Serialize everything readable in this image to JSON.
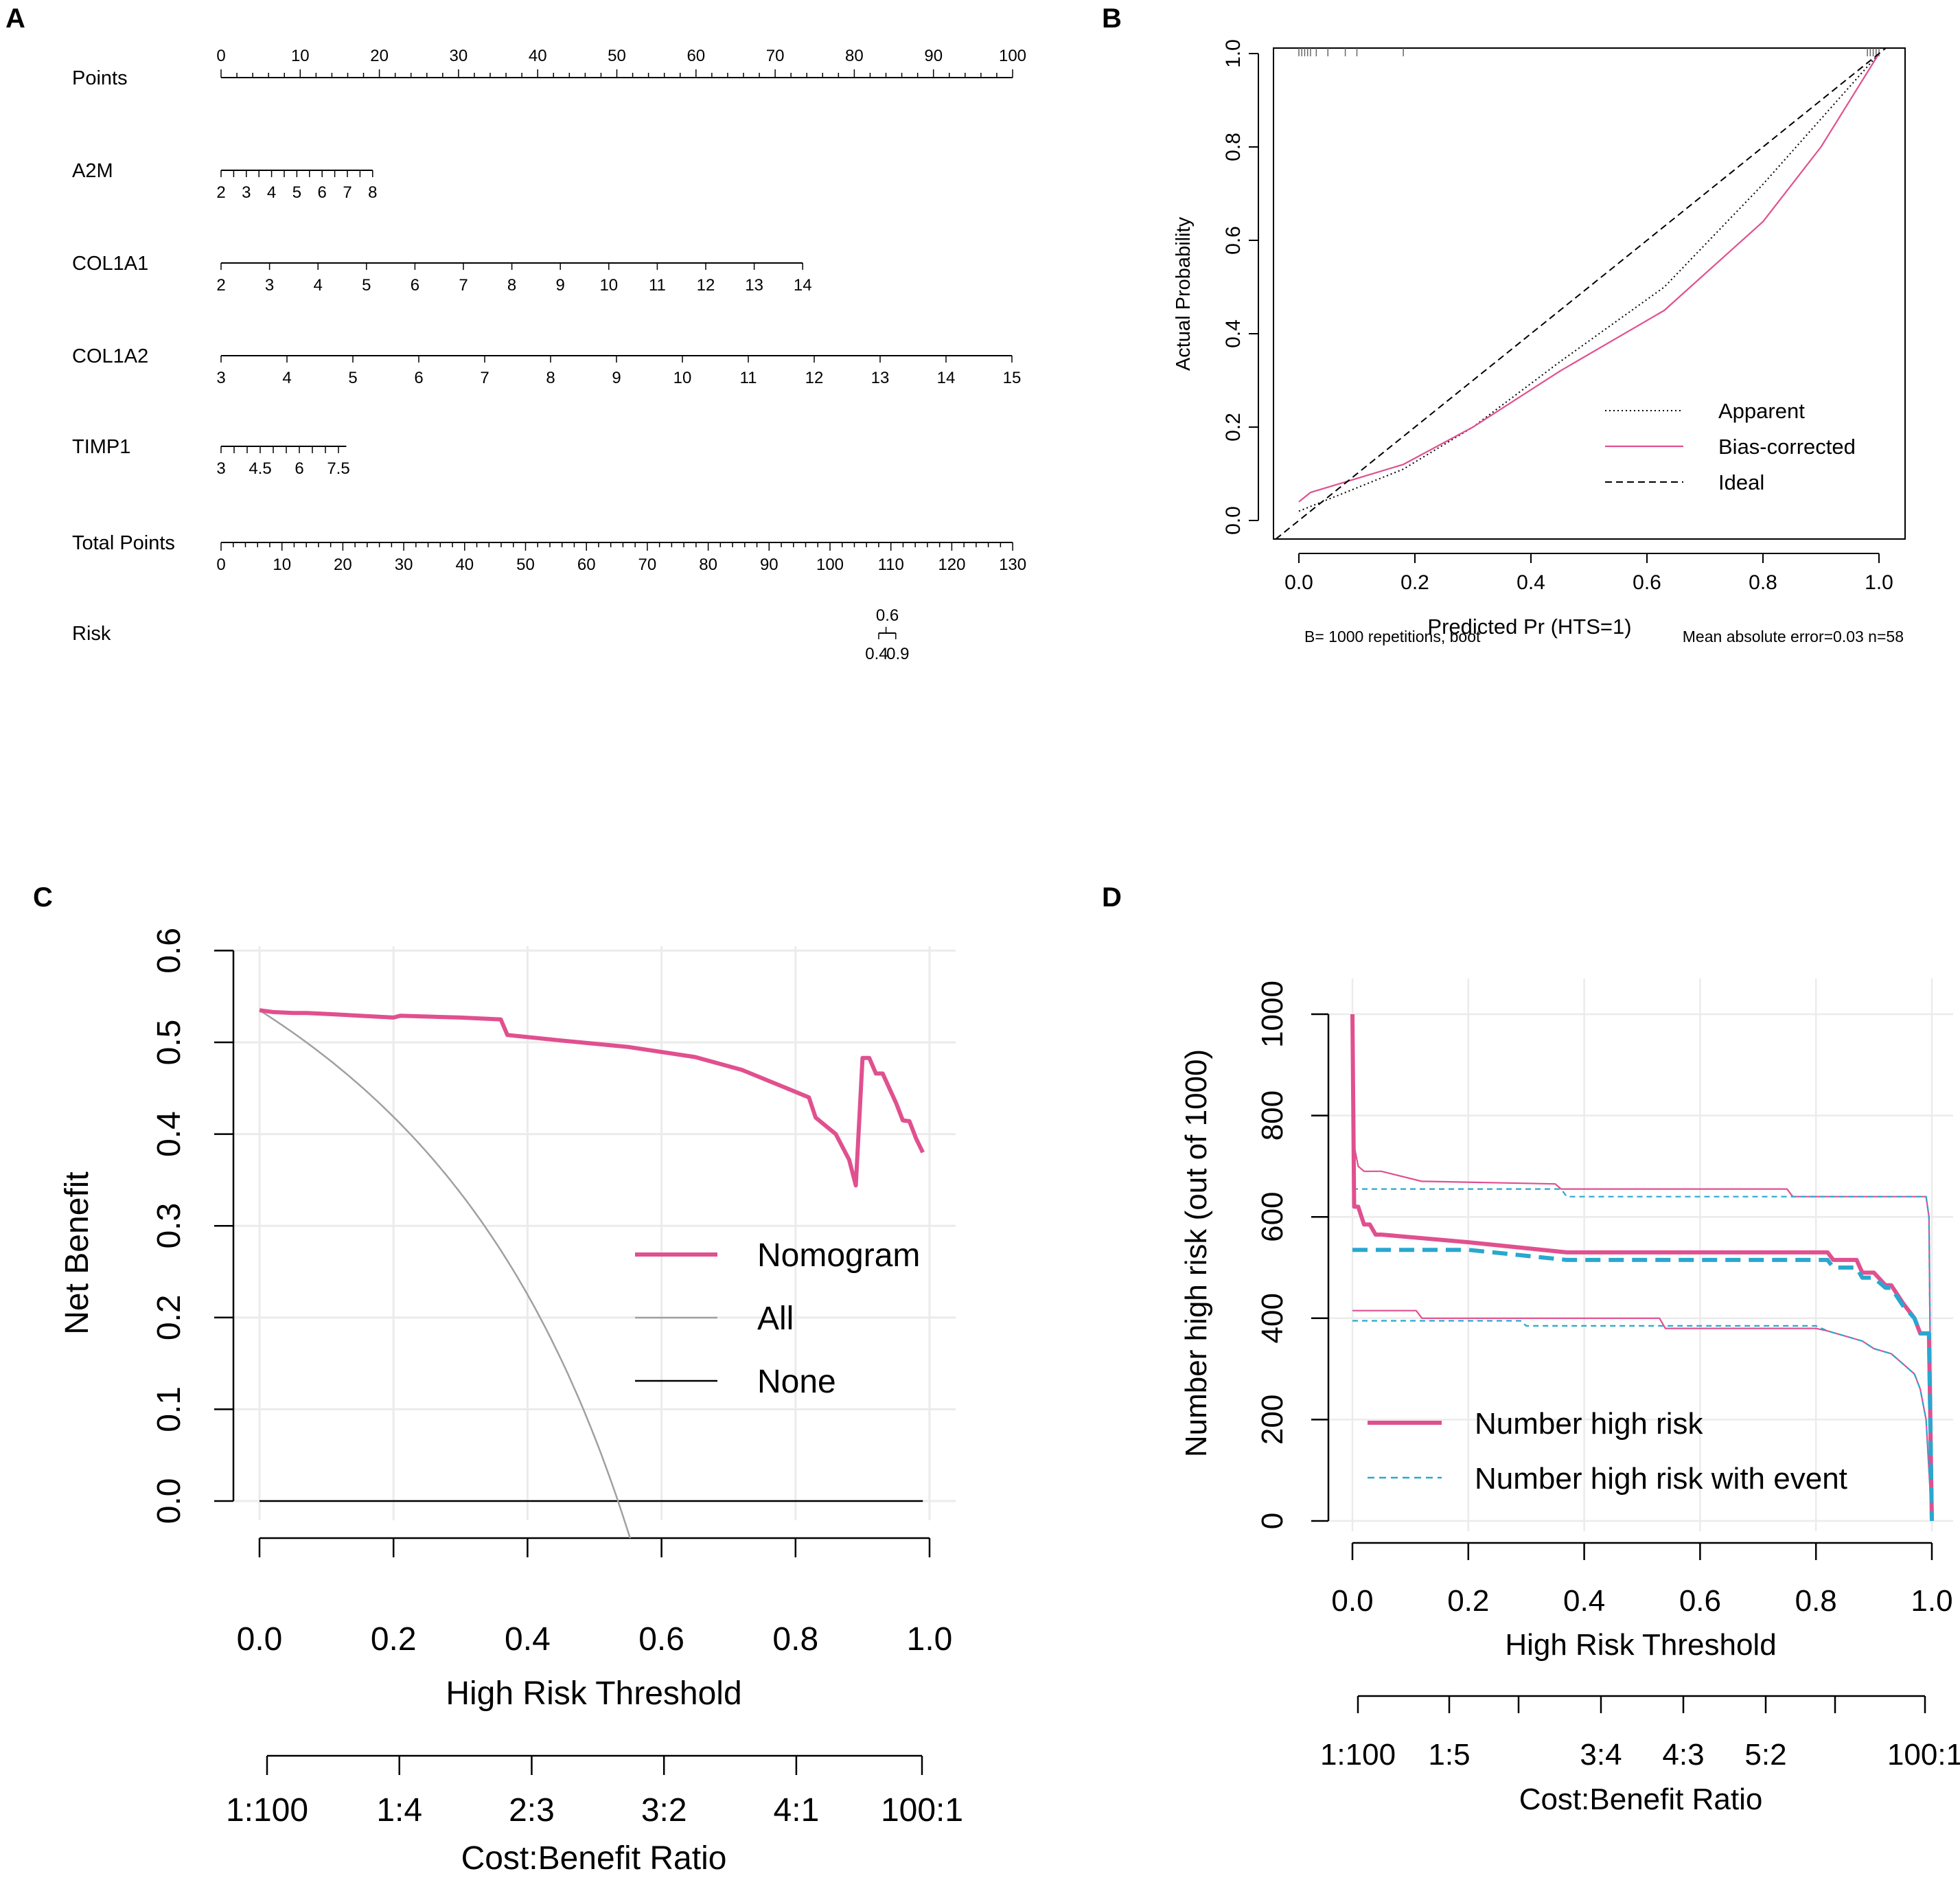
{
  "panels": {
    "a": "A",
    "b": "B",
    "c": "C",
    "d": "D"
  },
  "colors": {
    "pink": "#e0508f",
    "gray": "#a0a0a0",
    "cyan": "#2aa7cf",
    "grid": "#ebebeb",
    "black": "#000000"
  },
  "chart_data": [
    {
      "type": "table",
      "id": "nomogram",
      "rows": [
        {
          "label": "Points",
          "ticks": [
            "0",
            "10",
            "20",
            "30",
            "40",
            "50",
            "60",
            "70",
            "80",
            "90",
            "100"
          ],
          "labels_above": true
        },
        {
          "label": "A2M",
          "ticks": [
            "2",
            "3",
            "4",
            "5",
            "6",
            "7",
            "8"
          ]
        },
        {
          "label": "COL1A1",
          "ticks": [
            "2",
            "3",
            "4",
            "5",
            "6",
            "7",
            "8",
            "9",
            "10",
            "11",
            "12",
            "13",
            "14"
          ]
        },
        {
          "label": "COL1A2",
          "ticks": [
            "3",
            "4",
            "5",
            "6",
            "7",
            "8",
            "9",
            "10",
            "11",
            "12",
            "13",
            "14",
            "15"
          ]
        },
        {
          "label": "TIMP1",
          "ticks": [
            "3",
            "4.5",
            "6",
            "7.5"
          ]
        },
        {
          "label": "Total Points",
          "ticks": [
            "0",
            "10",
            "20",
            "30",
            "40",
            "50",
            "60",
            "70",
            "80",
            "90",
            "100",
            "110",
            "120",
            "130"
          ]
        },
        {
          "label": "Risk",
          "ticks_above": [
            "0.6"
          ],
          "ticks_below": [
            "0.4",
            "0.9"
          ]
        }
      ]
    },
    {
      "type": "line",
      "id": "calibration",
      "xlabel": "Predicted Pr (HTS=1)",
      "ylabel": "Actual Probability",
      "xlim": [
        0,
        1
      ],
      "ylim": [
        0,
        1
      ],
      "xticks": [
        "0.0",
        "0.2",
        "0.4",
        "0.6",
        "0.8",
        "1.0"
      ],
      "yticks": [
        "0.0",
        "0.2",
        "0.4",
        "0.6",
        "0.8",
        "1.0"
      ],
      "legend_position": "bottom-right",
      "series": [
        {
          "name": "Apparent",
          "style": "dotted",
          "x": [
            0.0,
            0.1,
            0.18,
            0.3,
            0.45,
            0.63,
            0.8,
            0.9,
            1.0
          ],
          "y": [
            0.02,
            0.07,
            0.11,
            0.2,
            0.34,
            0.5,
            0.72,
            0.86,
            1.0
          ]
        },
        {
          "name": "Bias-corrected",
          "style": "solid",
          "x": [
            0.0,
            0.02,
            0.1,
            0.18,
            0.3,
            0.45,
            0.63,
            0.8,
            0.9,
            1.0
          ],
          "y": [
            0.04,
            0.06,
            0.09,
            0.12,
            0.2,
            0.32,
            0.45,
            0.64,
            0.8,
            1.0
          ]
        },
        {
          "name": "Ideal",
          "style": "dashed",
          "x": [
            -0.04,
            1.04
          ],
          "y": [
            -0.04,
            1.04
          ]
        }
      ],
      "rug_x": [
        0.0,
        0.005,
        0.01,
        0.015,
        0.02,
        0.03,
        0.05,
        0.08,
        0.1,
        0.18,
        0.99,
        0.995,
        1.0,
        0.985,
        0.98
      ],
      "footnote_left": "B= 1000 repetitions, boot",
      "footnote_right": "Mean absolute error=0.03 n=58"
    },
    {
      "type": "line",
      "id": "decision_curve",
      "xlabel": "High Risk Threshold",
      "ylabel": "Net Benefit",
      "xlim": [
        0,
        1
      ],
      "ylim": [
        0,
        0.6
      ],
      "xticks": [
        "0.0",
        "0.2",
        "0.4",
        "0.6",
        "0.8",
        "1.0"
      ],
      "yticks": [
        "0.0",
        "0.1",
        "0.2",
        "0.3",
        "0.4",
        "0.5",
        "0.6"
      ],
      "cost_benefit_label": "Cost:Benefit Ratio",
      "cost_benefit_ticks": [
        "1:100",
        "1:4",
        "2:3",
        "3:2",
        "4:1",
        "100:1"
      ],
      "legend_position": "center-right",
      "series": [
        {
          "name": "Nomogram",
          "x": [
            0.0,
            0.02,
            0.05,
            0.07,
            0.1,
            0.2,
            0.21,
            0.3,
            0.36,
            0.37,
            0.45,
            0.55,
            0.65,
            0.72,
            0.78,
            0.82,
            0.83,
            0.86,
            0.88,
            0.89,
            0.9,
            0.91,
            0.92,
            0.93,
            0.94,
            0.95,
            0.96,
            0.97,
            0.98,
            0.99
          ],
          "y": [
            0.535,
            0.533,
            0.532,
            0.532,
            0.531,
            0.527,
            0.529,
            0.527,
            0.525,
            0.508,
            0.502,
            0.495,
            0.484,
            0.47,
            0.452,
            0.44,
            0.418,
            0.4,
            0.372,
            0.344,
            0.483,
            0.483,
            0.466,
            0.466,
            0.45,
            0.434,
            0.415,
            0.414,
            0.395,
            0.38
          ]
        },
        {
          "name": "All",
          "prevalence": 0.535,
          "x": [
            0.0,
            0.1,
            0.2,
            0.3,
            0.4,
            0.5,
            0.566
          ],
          "y": [
            0.535,
            0.483,
            0.419,
            0.336,
            0.225,
            0.07,
            -0.07
          ]
        },
        {
          "name": "None",
          "x": [
            0.0,
            0.99
          ],
          "y": [
            0.0,
            0.0
          ]
        }
      ]
    },
    {
      "type": "line",
      "id": "clinical_impact",
      "xlabel": "High Risk Threshold",
      "ylabel": "Number high risk (out of 1000)",
      "xlim": [
        0,
        1
      ],
      "ylim": [
        0,
        1000
      ],
      "xticks": [
        "0.0",
        "0.2",
        "0.4",
        "0.6",
        "0.8",
        "1.0"
      ],
      "yticks": [
        "0",
        "200",
        "400",
        "600",
        "800",
        "1000"
      ],
      "cost_benefit_label": "Cost:Benefit Ratio",
      "cost_benefit_ticks": [
        "1:100",
        "1:5",
        "3:4",
        "4:3",
        "5:2",
        "100:1"
      ],
      "legend_position": "bottom-left",
      "series": [
        {
          "name": "Number high risk",
          "x": [
            0.0,
            0.003,
            0.01,
            0.02,
            0.03,
            0.04,
            0.05,
            0.2,
            0.37,
            0.82,
            0.83,
            0.87,
            0.88,
            0.9,
            0.92,
            0.93,
            0.95,
            0.97,
            0.98,
            0.995,
            1.0
          ],
          "y": [
            1000,
            620,
            620,
            585,
            585,
            565,
            565,
            550,
            530,
            530,
            515,
            515,
            490,
            490,
            465,
            465,
            430,
            400,
            370,
            370,
            0
          ]
        },
        {
          "name": "Number high risk with event",
          "x": [
            0.0,
            0.2,
            0.37,
            0.8,
            0.82,
            0.83,
            0.87,
            0.88,
            0.9,
            0.92,
            0.93,
            0.95,
            0.97,
            0.98,
            0.995,
            1.0
          ],
          "y": [
            535,
            535,
            515,
            515,
            515,
            500,
            500,
            480,
            480,
            460,
            460,
            425,
            400,
            370,
            370,
            0
          ]
        },
        {
          "name": "High risk upper CI",
          "legend": false,
          "x": [
            0.0,
            0.003,
            0.01,
            0.02,
            0.05,
            0.12,
            0.13,
            0.35,
            0.36,
            0.75,
            0.76,
            0.99,
            0.995,
            1.0
          ],
          "y": [
            740,
            740,
            700,
            690,
            690,
            670,
            670,
            665,
            655,
            655,
            640,
            640,
            600,
            0
          ]
        },
        {
          "name": "High risk lower CI",
          "legend": false,
          "x": [
            0.0,
            0.003,
            0.01,
            0.11,
            0.12,
            0.53,
            0.54,
            0.8,
            0.82,
            0.88,
            0.9,
            0.93,
            0.95,
            0.97,
            0.98,
            0.99,
            1.0
          ],
          "y": [
            415,
            415,
            415,
            415,
            400,
            400,
            380,
            380,
            375,
            355,
            340,
            330,
            310,
            290,
            260,
            200,
            0
          ]
        },
        {
          "name": "Event upper CI",
          "legend": false,
          "x": [
            0.0,
            0.36,
            0.37,
            0.99,
            0.995,
            1.0
          ],
          "y": [
            655,
            655,
            640,
            640,
            600,
            0
          ]
        },
        {
          "name": "Event lower CI",
          "legend": false,
          "x": [
            0.0,
            0.29,
            0.3,
            0.8,
            0.82,
            0.88,
            0.9,
            0.93,
            0.95,
            0.97,
            0.98,
            0.99,
            1.0
          ],
          "y": [
            395,
            395,
            385,
            385,
            375,
            355,
            340,
            330,
            310,
            290,
            260,
            200,
            0
          ]
        }
      ]
    }
  ]
}
